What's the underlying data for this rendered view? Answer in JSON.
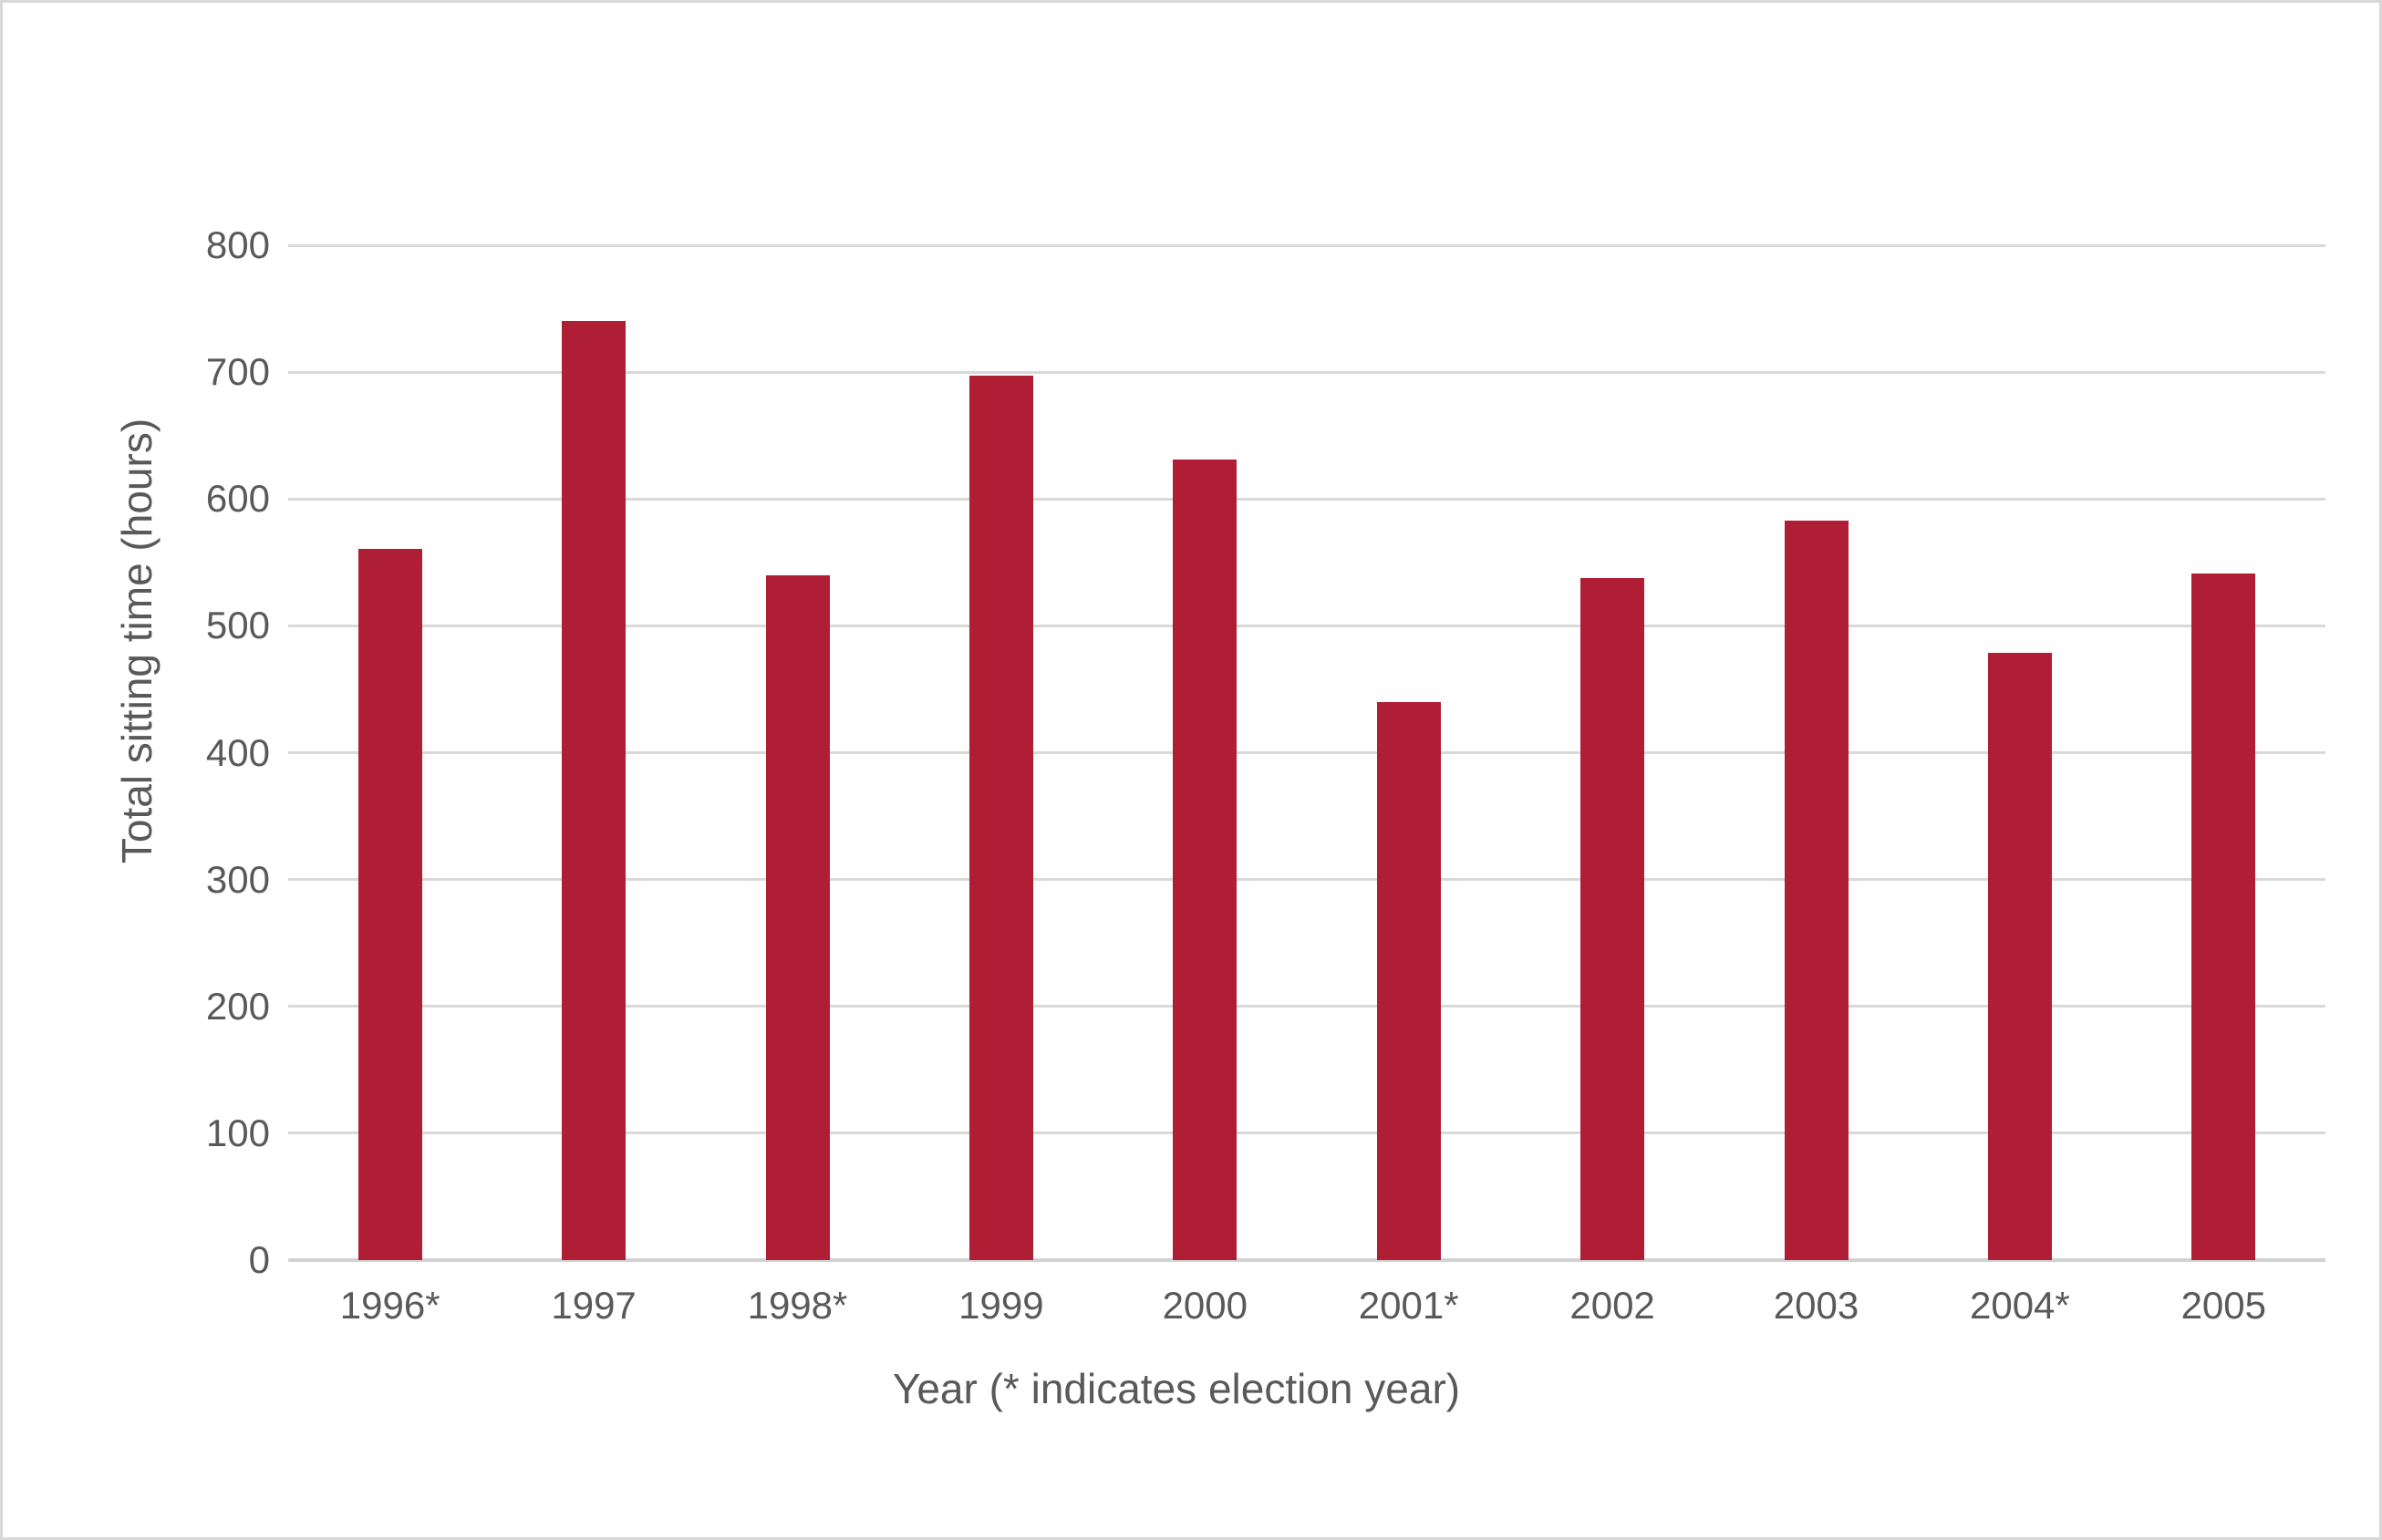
{
  "chart_data": {
    "type": "bar",
    "categories": [
      "1996*",
      "1997",
      "1998*",
      "1999",
      "2000",
      "2001*",
      "2002",
      "2003",
      "2004*",
      "2005"
    ],
    "values": [
      561,
      740,
      540,
      697,
      631,
      440,
      538,
      583,
      479,
      541
    ],
    "title": "",
    "xlabel": "Year (* indicates election year)",
    "ylabel": "Total sitting time (hours)",
    "ylim": [
      0,
      800
    ],
    "ytick_step": 100,
    "ytick_labels": [
      "0",
      "100",
      "200",
      "300",
      "400",
      "500",
      "600",
      "700",
      "800"
    ],
    "grid": true,
    "legend_position": "none",
    "bar_color": "#b01e36",
    "grid_color": "#d9d9d9",
    "axis_color": "#d2d2d2",
    "text_color": "#595959"
  }
}
